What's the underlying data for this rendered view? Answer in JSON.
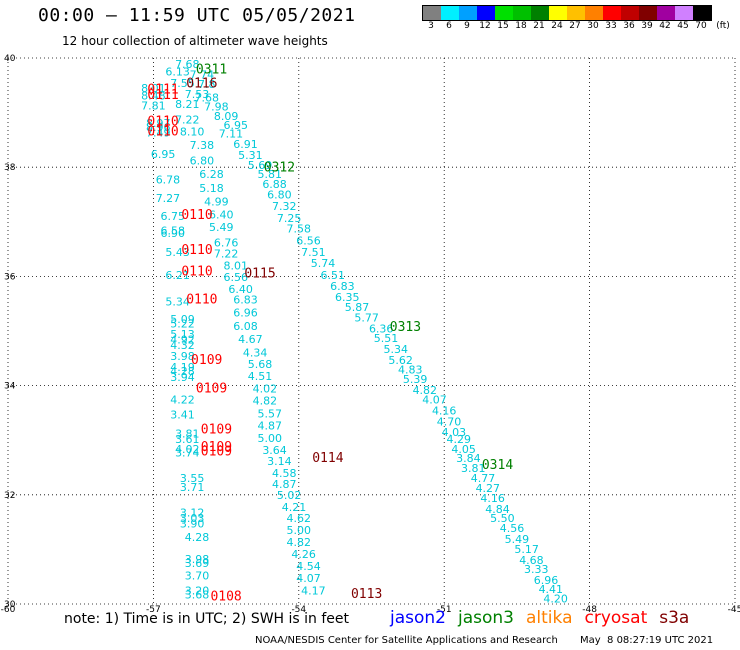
{
  "header": {
    "title": "00:00 — 11:59 UTC 05/05/2021",
    "subtitle": "12 hour collection of altimeter wave heights"
  },
  "colorbar": {
    "unit": "(ft)",
    "levels": [
      "3",
      "6",
      "9",
      "12",
      "15",
      "18",
      "21",
      "24",
      "27",
      "30",
      "33",
      "36",
      "39",
      "42",
      "45",
      "70"
    ],
    "colors": [
      "#808080",
      "#00f0ff",
      "#00a0ff",
      "#0000ff",
      "#00e000",
      "#00c000",
      "#008000",
      "#ffff00",
      "#ffc000",
      "#ff8000",
      "#ff0000",
      "#c00000",
      "#800000",
      "#a000a0",
      "#d080ff",
      "#000000"
    ]
  },
  "footer": {
    "note": "note: 1) Time is in UTC; 2) SWH is in feet",
    "legend": [
      {
        "name": "jason2",
        "color": "#0000ff"
      },
      {
        "name": "jason3",
        "color": "#008000"
      },
      {
        "name": "altika",
        "color": "#ff8000"
      },
      {
        "name": "cryosat",
        "color": "#ff0000"
      },
      {
        "name": "s3a",
        "color": "#800000"
      }
    ],
    "credit": "NOAA/NESDIS Center for Satellite Applications and Research",
    "timestamp": "May  8 08:27:19 UTC 2021"
  },
  "chart_data": {
    "type": "scatter",
    "xlim": [
      -60,
      -45
    ],
    "ylim": [
      30,
      40
    ],
    "x_ticks": [
      -60,
      -57,
      -54,
      -51,
      -48,
      -45
    ],
    "y_ticks": [
      30,
      32,
      34,
      36,
      38,
      40
    ],
    "grid": true,
    "value_color": "#00c8d8",
    "points": [
      {
        "x": -56.3,
        "y": 39.82,
        "v": "7.68"
      },
      {
        "x": -56.5,
        "y": 39.68,
        "v": "6.13"
      },
      {
        "x": -56.0,
        "y": 39.62,
        "v": "7.74"
      },
      {
        "x": -56.4,
        "y": 39.47,
        "v": "7.55"
      },
      {
        "x": -55.9,
        "y": 39.45,
        "v": "7.8"
      },
      {
        "x": -57.0,
        "y": 39.38,
        "v": "8.01"
      },
      {
        "x": -57.0,
        "y": 39.24,
        "v": "8.48"
      },
      {
        "x": -56.1,
        "y": 39.27,
        "v": "7.53"
      },
      {
        "x": -55.9,
        "y": 39.2,
        "v": "7.68"
      },
      {
        "x": -57.0,
        "y": 39.06,
        "v": "7.81"
      },
      {
        "x": -56.3,
        "y": 39.08,
        "v": "8.21"
      },
      {
        "x": -55.7,
        "y": 39.04,
        "v": "7.98"
      },
      {
        "x": -55.5,
        "y": 38.86,
        "v": "8.09"
      },
      {
        "x": -56.3,
        "y": 38.8,
        "v": "7.22"
      },
      {
        "x": -56.9,
        "y": 38.74,
        "v": "8.97"
      },
      {
        "x": -56.9,
        "y": 38.66,
        "v": "8.96"
      },
      {
        "x": -55.3,
        "y": 38.7,
        "v": "6.95"
      },
      {
        "x": -56.9,
        "y": 38.56,
        "v": "7.49"
      },
      {
        "x": -56.2,
        "y": 38.58,
        "v": "8.10"
      },
      {
        "x": -55.4,
        "y": 38.54,
        "v": "7.11"
      },
      {
        "x": -56.0,
        "y": 38.33,
        "v": "7.38"
      },
      {
        "x": -55.1,
        "y": 38.35,
        "v": "6.91"
      },
      {
        "x": -56.8,
        "y": 38.17,
        "v": "6.95"
      },
      {
        "x": -55.0,
        "y": 38.15,
        "v": "5.31"
      },
      {
        "x": -56.0,
        "y": 38.05,
        "v": "6.80"
      },
      {
        "x": -54.8,
        "y": 37.97,
        "v": "5.69"
      },
      {
        "x": -55.8,
        "y": 37.8,
        "v": "6.28"
      },
      {
        "x": -54.6,
        "y": 37.8,
        "v": "5.81"
      },
      {
        "x": -56.7,
        "y": 37.7,
        "v": "6.78"
      },
      {
        "x": -54.5,
        "y": 37.62,
        "v": "6.88"
      },
      {
        "x": -55.8,
        "y": 37.55,
        "v": "5.18"
      },
      {
        "x": -54.4,
        "y": 37.43,
        "v": "6.80"
      },
      {
        "x": -56.7,
        "y": 37.36,
        "v": "7.27"
      },
      {
        "x": -55.7,
        "y": 37.3,
        "v": "4.99"
      },
      {
        "x": -54.3,
        "y": 37.22,
        "v": "7.32"
      },
      {
        "x": -55.6,
        "y": 37.06,
        "v": "6.40"
      },
      {
        "x": -56.6,
        "y": 37.03,
        "v": "6.75"
      },
      {
        "x": -54.2,
        "y": 37.0,
        "v": "7.25"
      },
      {
        "x": -55.6,
        "y": 36.83,
        "v": "5.49"
      },
      {
        "x": -56.6,
        "y": 36.77,
        "v": "6.58"
      },
      {
        "x": -56.6,
        "y": 36.72,
        "v": "6.90"
      },
      {
        "x": -54.0,
        "y": 36.8,
        "v": "7.58"
      },
      {
        "x": -55.5,
        "y": 36.55,
        "v": "6.76"
      },
      {
        "x": -53.8,
        "y": 36.58,
        "v": "6.56"
      },
      {
        "x": -56.5,
        "y": 36.37,
        "v": "5.43"
      },
      {
        "x": -55.5,
        "y": 36.35,
        "v": "7.22"
      },
      {
        "x": -53.7,
        "y": 36.37,
        "v": "7.51"
      },
      {
        "x": -55.3,
        "y": 36.13,
        "v": "8.01"
      },
      {
        "x": -53.5,
        "y": 36.17,
        "v": "5.74"
      },
      {
        "x": -56.5,
        "y": 35.95,
        "v": "6.21"
      },
      {
        "x": -55.3,
        "y": 35.92,
        "v": "6.56"
      },
      {
        "x": -53.3,
        "y": 35.95,
        "v": "6.51"
      },
      {
        "x": -53.1,
        "y": 35.75,
        "v": "6.83"
      },
      {
        "x": -55.2,
        "y": 35.7,
        "v": "6.40"
      },
      {
        "x": -53.0,
        "y": 35.55,
        "v": "6.35"
      },
      {
        "x": -56.5,
        "y": 35.47,
        "v": "5.34"
      },
      {
        "x": -55.1,
        "y": 35.5,
        "v": "6.83"
      },
      {
        "x": -52.8,
        "y": 35.37,
        "v": "5.87"
      },
      {
        "x": -55.1,
        "y": 35.27,
        "v": "6.96"
      },
      {
        "x": -52.6,
        "y": 35.17,
        "v": "5.77"
      },
      {
        "x": -56.4,
        "y": 35.15,
        "v": "5.09"
      },
      {
        "x": -56.4,
        "y": 35.06,
        "v": "5.22"
      },
      {
        "x": -55.1,
        "y": 35.02,
        "v": "6.08"
      },
      {
        "x": -52.3,
        "y": 34.97,
        "v": "6.36"
      },
      {
        "x": -56.4,
        "y": 34.87,
        "v": "5.13"
      },
      {
        "x": -52.2,
        "y": 34.8,
        "v": "5.51"
      },
      {
        "x": -56.4,
        "y": 34.77,
        "v": "4.92"
      },
      {
        "x": -56.4,
        "y": 34.67,
        "v": "4.32"
      },
      {
        "x": -55.0,
        "y": 34.78,
        "v": "4.67"
      },
      {
        "x": -52.0,
        "y": 34.6,
        "v": "5.34"
      },
      {
        "x": -54.9,
        "y": 34.53,
        "v": "4.34"
      },
      {
        "x": -51.9,
        "y": 34.4,
        "v": "5.62"
      },
      {
        "x": -56.4,
        "y": 34.47,
        "v": "3.98"
      },
      {
        "x": -54.8,
        "y": 34.32,
        "v": "5.68"
      },
      {
        "x": -51.7,
        "y": 34.22,
        "v": "4.83"
      },
      {
        "x": -56.4,
        "y": 34.27,
        "v": "4.19"
      },
      {
        "x": -56.4,
        "y": 34.19,
        "v": "4.28"
      },
      {
        "x": -51.6,
        "y": 34.05,
        "v": "5.39"
      },
      {
        "x": -56.4,
        "y": 34.08,
        "v": "3.94"
      },
      {
        "x": -54.8,
        "y": 34.1,
        "v": "4.51"
      },
      {
        "x": -51.4,
        "y": 33.85,
        "v": "4.82"
      },
      {
        "x": -54.7,
        "y": 33.87,
        "v": "4.02"
      },
      {
        "x": -51.2,
        "y": 33.67,
        "v": "4.07"
      },
      {
        "x": -56.4,
        "y": 33.67,
        "v": "4.22"
      },
      {
        "x": -54.7,
        "y": 33.65,
        "v": "4.82"
      },
      {
        "x": -51.0,
        "y": 33.47,
        "v": "4.16"
      },
      {
        "x": -56.4,
        "y": 33.4,
        "v": "3.41"
      },
      {
        "x": -54.6,
        "y": 33.42,
        "v": "5.57"
      },
      {
        "x": -50.9,
        "y": 33.27,
        "v": "4.70"
      },
      {
        "x": -54.6,
        "y": 33.2,
        "v": "4.87"
      },
      {
        "x": -50.8,
        "y": 33.08,
        "v": "4.03"
      },
      {
        "x": -56.3,
        "y": 33.05,
        "v": "3.81"
      },
      {
        "x": -56.3,
        "y": 32.95,
        "v": "3.61"
      },
      {
        "x": -50.7,
        "y": 32.95,
        "v": "4.29"
      },
      {
        "x": -54.6,
        "y": 32.97,
        "v": "5.00"
      },
      {
        "x": -50.6,
        "y": 32.77,
        "v": "4.05"
      },
      {
        "x": -56.3,
        "y": 32.77,
        "v": "4.02"
      },
      {
        "x": -56.3,
        "y": 32.7,
        "v": "3.74"
      },
      {
        "x": -54.5,
        "y": 32.75,
        "v": "3.64"
      },
      {
        "x": -50.5,
        "y": 32.6,
        "v": "3.84"
      },
      {
        "x": -54.4,
        "y": 32.55,
        "v": "3.14"
      },
      {
        "x": -50.4,
        "y": 32.42,
        "v": "3.81"
      },
      {
        "x": -54.3,
        "y": 32.33,
        "v": "4.58"
      },
      {
        "x": -50.2,
        "y": 32.23,
        "v": "4.77"
      },
      {
        "x": -56.2,
        "y": 32.23,
        "v": "3.55"
      },
      {
        "x": -56.2,
        "y": 32.07,
        "v": "3.71"
      },
      {
        "x": -54.3,
        "y": 32.12,
        "v": "4.87"
      },
      {
        "x": -50.1,
        "y": 32.05,
        "v": "4.27"
      },
      {
        "x": -54.2,
        "y": 31.92,
        "v": "5.02"
      },
      {
        "x": -50.0,
        "y": 31.87,
        "v": "4.16"
      },
      {
        "x": -49.9,
        "y": 31.67,
        "v": "4.84"
      },
      {
        "x": -54.1,
        "y": 31.7,
        "v": "4.21"
      },
      {
        "x": -56.2,
        "y": 31.6,
        "v": "3.12"
      },
      {
        "x": -49.8,
        "y": 31.5,
        "v": "5.50"
      },
      {
        "x": -56.2,
        "y": 31.5,
        "v": "3.03"
      },
      {
        "x": -54.0,
        "y": 31.5,
        "v": "4.62"
      },
      {
        "x": -56.2,
        "y": 31.4,
        "v": "3.90"
      },
      {
        "x": -49.6,
        "y": 31.32,
        "v": "4.56"
      },
      {
        "x": -54.0,
        "y": 31.28,
        "v": "5.00"
      },
      {
        "x": -49.5,
        "y": 31.12,
        "v": "5.49"
      },
      {
        "x": -56.1,
        "y": 31.15,
        "v": "4.28"
      },
      {
        "x": -54.0,
        "y": 31.06,
        "v": "4.82"
      },
      {
        "x": -49.3,
        "y": 30.93,
        "v": "5.17"
      },
      {
        "x": -53.9,
        "y": 30.84,
        "v": "4.26"
      },
      {
        "x": -49.2,
        "y": 30.73,
        "v": "4.68"
      },
      {
        "x": -56.1,
        "y": 30.75,
        "v": "3.98"
      },
      {
        "x": -56.1,
        "y": 30.68,
        "v": "3.69"
      },
      {
        "x": -49.1,
        "y": 30.57,
        "v": "3.33"
      },
      {
        "x": -53.8,
        "y": 30.62,
        "v": "4.54"
      },
      {
        "x": -48.9,
        "y": 30.37,
        "v": "6.96"
      },
      {
        "x": -56.1,
        "y": 30.45,
        "v": "3.70"
      },
      {
        "x": -53.8,
        "y": 30.4,
        "v": "4.07"
      },
      {
        "x": -48.8,
        "y": 30.2,
        "v": "4.41"
      },
      {
        "x": -56.1,
        "y": 30.17,
        "v": "3.20"
      },
      {
        "x": -56.1,
        "y": 30.1,
        "v": "3.68"
      },
      {
        "x": -53.7,
        "y": 30.17,
        "v": "4.17"
      },
      {
        "x": -48.7,
        "y": 30.03,
        "v": "4.20"
      }
    ],
    "pass_labels": [
      {
        "x": -55.8,
        "y": 39.72,
        "text": "0311",
        "color": "#008000"
      },
      {
        "x": -56.0,
        "y": 39.46,
        "text": "0116",
        "color": "#800000"
      },
      {
        "x": -56.8,
        "y": 39.35,
        "text": "0111",
        "color": "#ff0000"
      },
      {
        "x": -56.8,
        "y": 39.25,
        "text": "0111",
        "color": "#ff0000"
      },
      {
        "x": -56.8,
        "y": 38.76,
        "text": "0110",
        "color": "#ff0000"
      },
      {
        "x": -56.8,
        "y": 38.58,
        "text": "0110",
        "color": "#ff0000"
      },
      {
        "x": -54.4,
        "y": 37.92,
        "text": "0312",
        "color": "#008000"
      },
      {
        "x": -56.1,
        "y": 37.05,
        "text": "0110",
        "color": "#ff0000"
      },
      {
        "x": -56.1,
        "y": 36.41,
        "text": "0110",
        "color": "#ff0000"
      },
      {
        "x": -56.1,
        "y": 36.02,
        "text": "0110",
        "color": "#ff0000"
      },
      {
        "x": -54.8,
        "y": 35.98,
        "text": "0115",
        "color": "#800000"
      },
      {
        "x": -56.0,
        "y": 35.5,
        "text": "0110",
        "color": "#ff0000"
      },
      {
        "x": -51.8,
        "y": 35.0,
        "text": "0313",
        "color": "#008000"
      },
      {
        "x": -55.9,
        "y": 34.4,
        "text": "0109",
        "color": "#ff0000"
      },
      {
        "x": -55.8,
        "y": 33.87,
        "text": "0109",
        "color": "#ff0000"
      },
      {
        "x": -55.7,
        "y": 33.12,
        "text": "0109",
        "color": "#ff0000"
      },
      {
        "x": -55.7,
        "y": 32.8,
        "text": "0109",
        "color": "#ff0000"
      },
      {
        "x": -55.7,
        "y": 32.72,
        "text": "0109",
        "color": "#ff0000"
      },
      {
        "x": -53.4,
        "y": 32.6,
        "text": "0114",
        "color": "#800000"
      },
      {
        "x": -49.9,
        "y": 32.47,
        "text": "0314",
        "color": "#008000"
      },
      {
        "x": -55.5,
        "y": 30.06,
        "text": "0108",
        "color": "#ff0000"
      },
      {
        "x": -52.6,
        "y": 30.11,
        "text": "0113",
        "color": "#800000"
      }
    ]
  }
}
